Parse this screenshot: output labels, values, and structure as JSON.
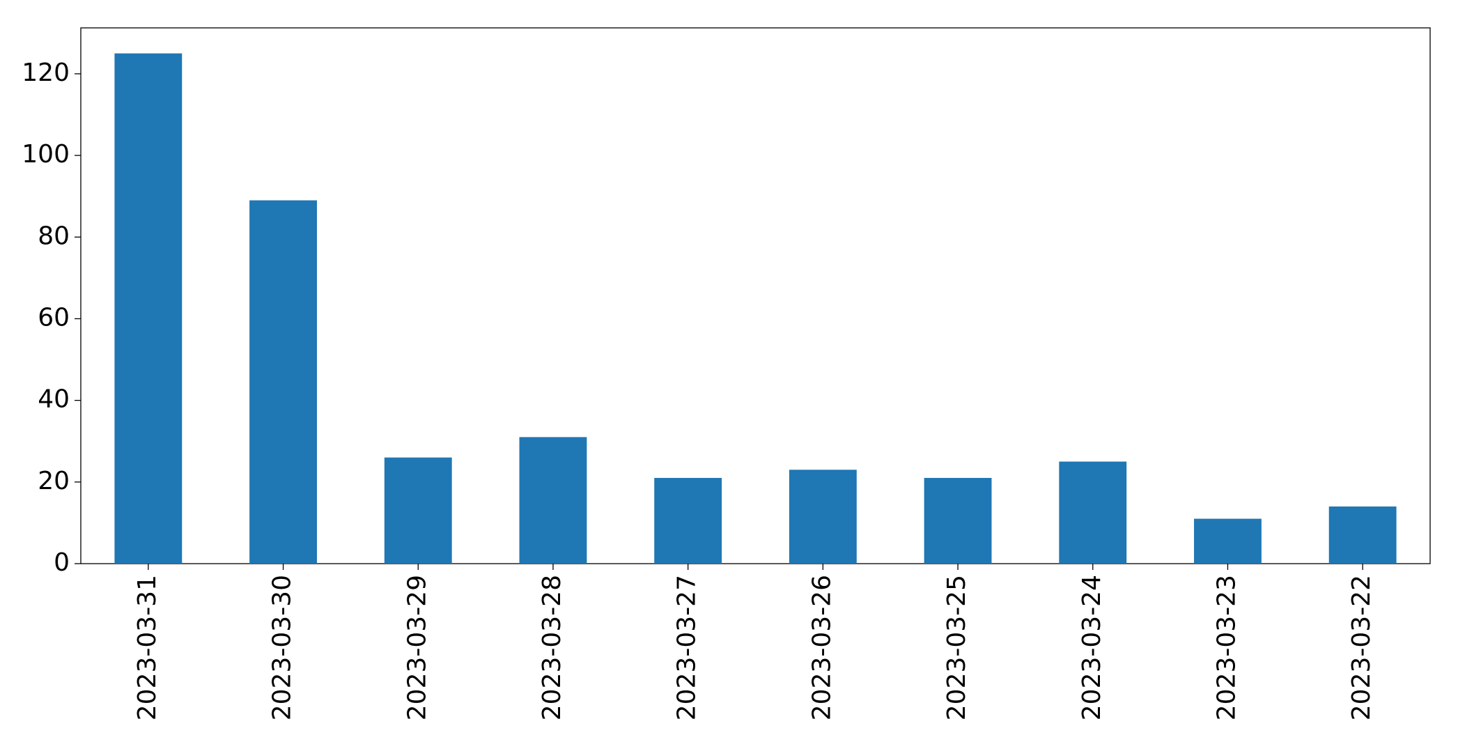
{
  "chart_data": {
    "type": "bar",
    "categories": [
      "2023-03-31",
      "2023-03-30",
      "2023-03-29",
      "2023-03-28",
      "2023-03-27",
      "2023-03-26",
      "2023-03-25",
      "2023-03-24",
      "2023-03-23",
      "2023-03-22"
    ],
    "values": [
      125,
      89,
      26,
      31,
      21,
      23,
      21,
      25,
      11,
      14
    ],
    "color": "#1f77b4",
    "ylim": [
      0,
      131.25
    ],
    "yticks": [
      0,
      20,
      40,
      60,
      80,
      100,
      120
    ],
    "grid": false
  }
}
